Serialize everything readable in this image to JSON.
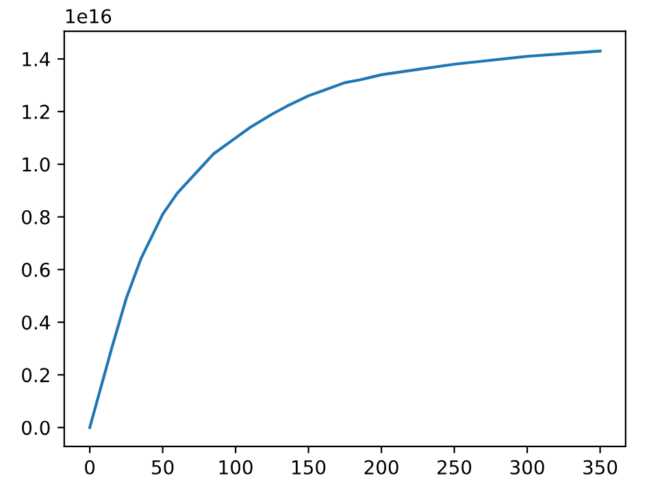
{
  "chart_data": {
    "type": "line",
    "x": [
      0,
      5,
      10,
      15,
      25,
      35,
      50,
      60,
      75,
      85,
      100,
      110,
      125,
      135,
      150,
      160,
      175,
      185,
      200,
      225,
      250,
      275,
      300,
      325,
      350
    ],
    "series": [
      {
        "color": "#1f77b4",
        "values": [
          0,
          0.1,
          0.2,
          0.3,
          0.49,
          0.64,
          0.81,
          0.89,
          0.98,
          1.04,
          1.1,
          1.14,
          1.19,
          1.22,
          1.26,
          1.28,
          1.31,
          1.32,
          1.34,
          1.36,
          1.38,
          1.395,
          1.41,
          1.42,
          1.43
        ]
      }
    ],
    "xlim": [
      -17.5,
      367.5
    ],
    "xticks": [
      0,
      50,
      100,
      150,
      200,
      250,
      300,
      350
    ],
    "ylim": [
      -0.072,
      1.505
    ],
    "yticks": [
      {
        "value": 0,
        "label": "0.0"
      },
      0.2,
      0.4,
      0.6,
      0.8,
      {
        "value": 1,
        "label": "1.0"
      },
      1.2,
      1.4
    ],
    "annotations": [
      "1e16"
    ],
    "grid": false,
    "legend": false
  }
}
